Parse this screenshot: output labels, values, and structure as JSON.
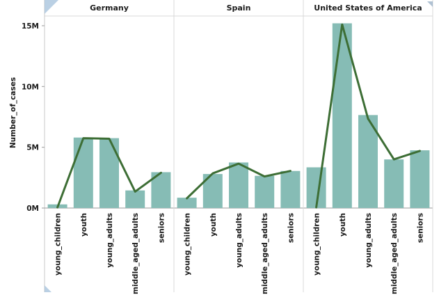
{
  "chart_data": {
    "type": "bar",
    "ylabel": "Number_of_cases",
    "ylim": [
      0,
      15800000
    ],
    "yticks": [
      0,
      5000000,
      10000000,
      15000000
    ],
    "ytick_labels": [
      "0M",
      "5M",
      "10M",
      "15M"
    ],
    "categories": [
      "young_children",
      "youth",
      "young_adults",
      "middle_aged_adults",
      "seniors"
    ],
    "bar_color": "#86bcb5",
    "line_color": "#3d6e35",
    "panels": [
      {
        "title": "Germany",
        "bars": [
          300000,
          5800000,
          5750000,
          1450000,
          2950000
        ],
        "line": [
          50000,
          5750000,
          5700000,
          1350000,
          2900000
        ]
      },
      {
        "title": "Spain",
        "bars": [
          850000,
          2800000,
          3750000,
          2650000,
          3050000
        ],
        "line": [
          800000,
          2850000,
          3650000,
          2600000,
          3050000
        ]
      },
      {
        "title": "United States of America",
        "bars": [
          3350000,
          15200000,
          7650000,
          4000000,
          4750000
        ],
        "line": [
          50000,
          15100000,
          7350000,
          4000000,
          4700000
        ]
      }
    ]
  }
}
